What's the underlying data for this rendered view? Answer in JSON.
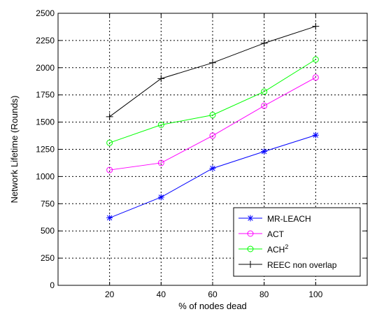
{
  "chart_data": {
    "type": "line",
    "title": "",
    "xlabel": "% of nodes dead",
    "ylabel": "Network Lifetime (Rounds)",
    "xlim": [
      0,
      120
    ],
    "ylim": [
      0,
      2500
    ],
    "x_ticks": [
      20,
      40,
      60,
      80,
      100
    ],
    "y_ticks": [
      0,
      250,
      500,
      750,
      1000,
      1250,
      1500,
      1750,
      2000,
      2250,
      2500
    ],
    "grid": true,
    "legend_position": "bottom-right",
    "x": [
      20,
      40,
      60,
      80,
      100
    ],
    "series": [
      {
        "name": "MR-LEACH",
        "values": [
          620,
          810,
          1075,
          1230,
          1380
        ],
        "color": "#0000ff",
        "marker": "star"
      },
      {
        "name": "ACT",
        "values": [
          1060,
          1125,
          1375,
          1650,
          1910
        ],
        "color": "#ff00ff",
        "marker": "circle"
      },
      {
        "name": "ACH",
        "name_sup": "2",
        "values": [
          1310,
          1475,
          1565,
          1780,
          2075
        ],
        "color": "#00ff00",
        "marker": "circle"
      },
      {
        "name": "REEC non overlap",
        "values": [
          1550,
          1900,
          2045,
          2225,
          2380
        ],
        "color": "#000000",
        "marker": "plus"
      }
    ]
  }
}
